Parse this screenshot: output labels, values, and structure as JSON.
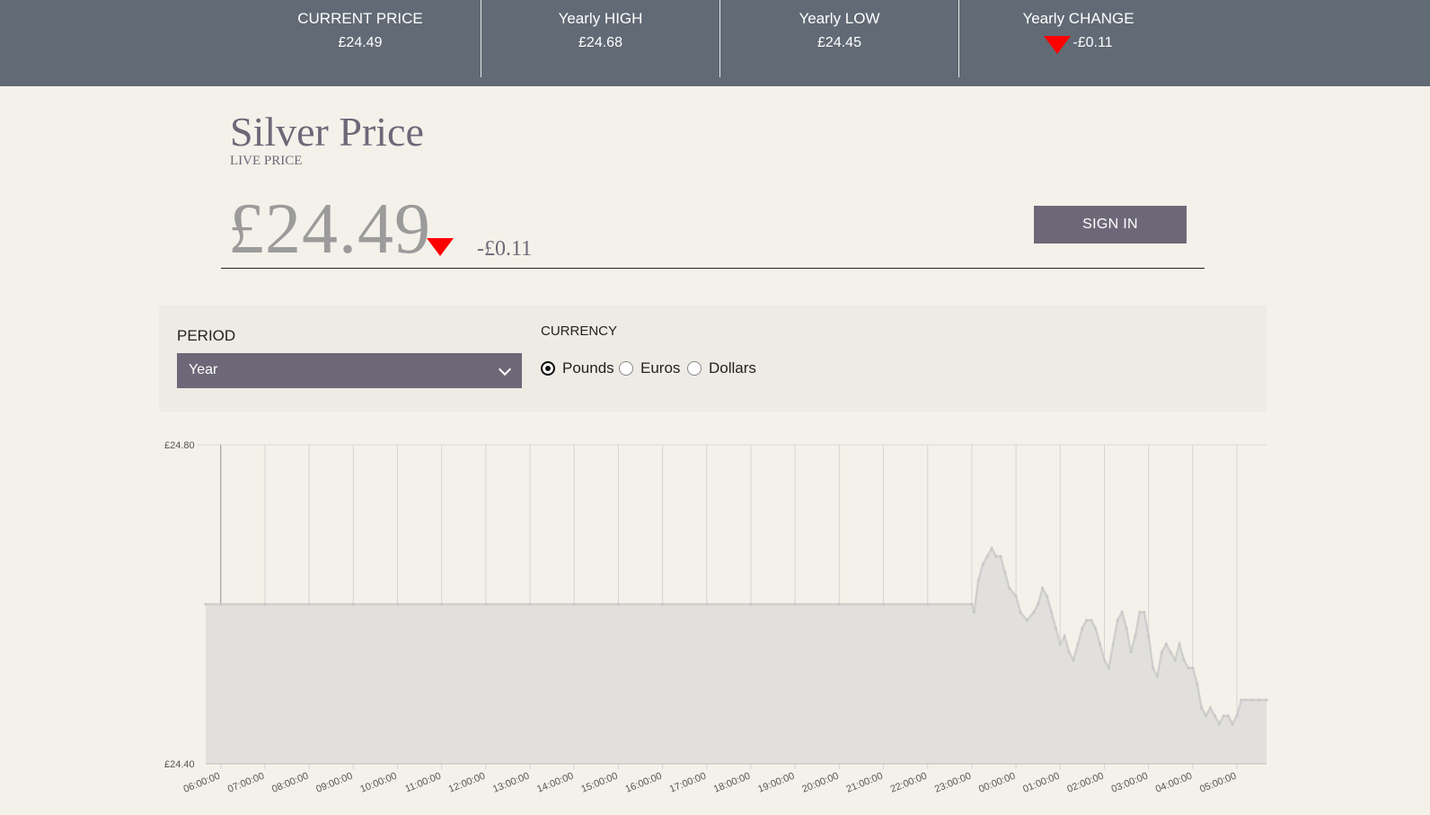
{
  "ticker": [
    {
      "label": "CURRENT PRICE",
      "value": "£24.49"
    },
    {
      "label": "Yearly HIGH",
      "value": "£24.68"
    },
    {
      "label": "Yearly LOW",
      "value": "£24.45"
    },
    {
      "label": "Yearly CHANGE",
      "value": "-£0.11",
      "indicator": "down-triangle-icon"
    }
  ],
  "header": {
    "title": "Silver Price",
    "subtitle": "LIVE PRICE",
    "price": "£24.49",
    "change": "-£0.11",
    "signin_label": "SIGN IN"
  },
  "controls": {
    "period_label": "PERIOD",
    "period_selected": "Year",
    "currency_label": "CURRENCY",
    "currency_options": [
      "Pounds",
      "Euros",
      "Dollars"
    ],
    "currency_selected": "Pounds"
  },
  "colors": {
    "ticker_bg": "#616a75",
    "accent": "#6d6878",
    "down": "#ff0000",
    "area_fill": "#e2e0dc",
    "line": "#cfcfcf"
  },
  "chart_data": {
    "type": "area",
    "ylabels": [
      "£24.80",
      "£24.40"
    ],
    "ylim": [
      24.4,
      24.8
    ],
    "grid": true,
    "x_ticks": [
      "06:00:00",
      "07:00:00",
      "08:00:00",
      "09:00:00",
      "10:00:00",
      "11:00:00",
      "12:00:00",
      "13:00:00",
      "14:00:00",
      "15:00:00",
      "16:00:00",
      "17:00:00",
      "18:00:00",
      "19:00:00",
      "20:00:00",
      "21:00:00",
      "22:00:00",
      "23:00:00",
      "00:00:00",
      "01:00:00",
      "02:00:00",
      "03:00:00",
      "04:00:00",
      "05:00:00"
    ],
    "xlim": [
      5.66,
      29.67
    ],
    "series": [
      {
        "points": [
          [
            5.66,
            24.6
          ],
          [
            6.0,
            24.6
          ],
          [
            7.0,
            24.6
          ],
          [
            8.0,
            24.6
          ],
          [
            9.0,
            24.6
          ],
          [
            10.0,
            24.6
          ],
          [
            11.0,
            24.6
          ],
          [
            12.0,
            24.6
          ],
          [
            13.0,
            24.6
          ],
          [
            14.0,
            24.6
          ],
          [
            15.0,
            24.6
          ],
          [
            16.0,
            24.6
          ],
          [
            17.0,
            24.6
          ],
          [
            18.0,
            24.6
          ],
          [
            19.0,
            24.6
          ],
          [
            20.0,
            24.6
          ],
          [
            21.0,
            24.6
          ],
          [
            22.0,
            24.6
          ],
          [
            23.0,
            24.6
          ],
          [
            23.05,
            24.59
          ],
          [
            23.15,
            24.63
          ],
          [
            23.25,
            24.65
          ],
          [
            23.35,
            24.66
          ],
          [
            23.45,
            24.67
          ],
          [
            23.55,
            24.66
          ],
          [
            23.65,
            24.66
          ],
          [
            23.75,
            24.64
          ],
          [
            23.85,
            24.62
          ],
          [
            24.0,
            24.61
          ],
          [
            24.1,
            24.59
          ],
          [
            24.25,
            24.58
          ],
          [
            24.4,
            24.59
          ],
          [
            24.5,
            24.6
          ],
          [
            24.6,
            24.62
          ],
          [
            24.7,
            24.61
          ],
          [
            24.8,
            24.59
          ],
          [
            24.9,
            24.57
          ],
          [
            25.0,
            24.55
          ],
          [
            25.1,
            24.56
          ],
          [
            25.2,
            24.54
          ],
          [
            25.3,
            24.53
          ],
          [
            25.4,
            24.55
          ],
          [
            25.5,
            24.57
          ],
          [
            25.6,
            24.58
          ],
          [
            25.7,
            24.58
          ],
          [
            25.8,
            24.57
          ],
          [
            25.9,
            24.55
          ],
          [
            26.0,
            24.53
          ],
          [
            26.1,
            24.52
          ],
          [
            26.2,
            24.55
          ],
          [
            26.3,
            24.58
          ],
          [
            26.4,
            24.59
          ],
          [
            26.5,
            24.57
          ],
          [
            26.6,
            24.54
          ],
          [
            26.7,
            24.56
          ],
          [
            26.8,
            24.59
          ],
          [
            26.9,
            24.59
          ],
          [
            27.0,
            24.56
          ],
          [
            27.1,
            24.52
          ],
          [
            27.2,
            24.51
          ],
          [
            27.3,
            24.54
          ],
          [
            27.4,
            24.55
          ],
          [
            27.5,
            24.54
          ],
          [
            27.6,
            24.53
          ],
          [
            27.7,
            24.55
          ],
          [
            27.8,
            24.53
          ],
          [
            27.9,
            24.52
          ],
          [
            28.0,
            24.52
          ],
          [
            28.1,
            24.5
          ],
          [
            28.2,
            24.47
          ],
          [
            28.3,
            24.46
          ],
          [
            28.4,
            24.47
          ],
          [
            28.5,
            24.46
          ],
          [
            28.6,
            24.45
          ],
          [
            28.7,
            24.46
          ],
          [
            28.8,
            24.46
          ],
          [
            28.9,
            24.45
          ],
          [
            29.0,
            24.46
          ],
          [
            29.1,
            24.48
          ],
          [
            29.2,
            24.48
          ],
          [
            29.35,
            24.48
          ],
          [
            29.5,
            24.48
          ],
          [
            29.67,
            24.48
          ]
        ]
      }
    ]
  }
}
